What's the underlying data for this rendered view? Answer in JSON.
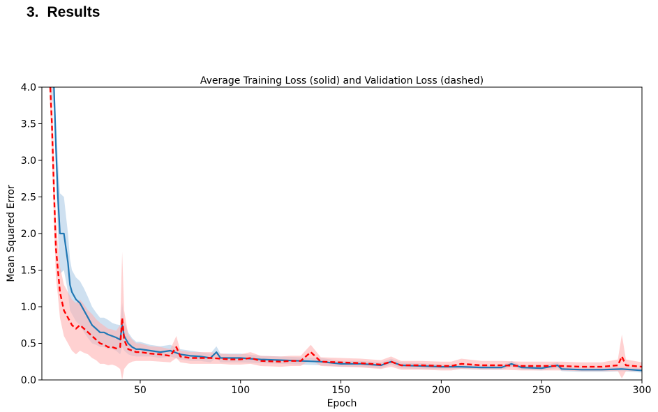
{
  "section": {
    "number": "3.",
    "title": "Results"
  },
  "colors": {
    "training": "#1f77b4",
    "validation": "#ff0000",
    "training_band": "#a6c6e4",
    "validation_band": "#ffb3b3"
  },
  "chart_data": {
    "type": "line",
    "title": "Average Training Loss (solid) and Validation Loss (dashed)",
    "xlabel": "Epoch",
    "ylabel": "Mean Squared Error",
    "xlim": [
      1,
      300
    ],
    "ylim": [
      0,
      4.0
    ],
    "x_ticks": [
      50,
      100,
      150,
      200,
      250,
      300
    ],
    "y_ticks": [
      0.0,
      0.5,
      1.0,
      1.5,
      2.0,
      2.5,
      3.0,
      3.5,
      4.0
    ],
    "grid": false,
    "legend": "none",
    "series": [
      {
        "line_style": "solid",
        "x": [
          5,
          7,
          8,
          9,
          10,
          12,
          14,
          15,
          16,
          18,
          20,
          22,
          24,
          26,
          28,
          30,
          32,
          34,
          36,
          38,
          40,
          41,
          42,
          44,
          46,
          48,
          50,
          55,
          60,
          65,
          70,
          75,
          80,
          85,
          88,
          90,
          95,
          100,
          110,
          120,
          130,
          140,
          150,
          160,
          170,
          175,
          180,
          190,
          200,
          210,
          220,
          230,
          235,
          240,
          250,
          258,
          260,
          270,
          280,
          290,
          300
        ],
        "y": [
          4.3,
          4.0,
          3.2,
          2.5,
          2.0,
          2.0,
          1.6,
          1.3,
          1.2,
          1.1,
          1.05,
          0.95,
          0.85,
          0.75,
          0.7,
          0.65,
          0.65,
          0.62,
          0.6,
          0.58,
          0.55,
          0.75,
          0.6,
          0.5,
          0.45,
          0.42,
          0.42,
          0.4,
          0.38,
          0.4,
          0.35,
          0.33,
          0.32,
          0.3,
          0.38,
          0.3,
          0.3,
          0.3,
          0.28,
          0.27,
          0.26,
          0.25,
          0.22,
          0.22,
          0.2,
          0.25,
          0.2,
          0.19,
          0.18,
          0.18,
          0.17,
          0.17,
          0.22,
          0.17,
          0.16,
          0.2,
          0.15,
          0.14,
          0.14,
          0.15,
          0.13
        ],
        "band_halfwidth": [
          0.3,
          0.3,
          0.35,
          0.5,
          0.55,
          0.5,
          0.4,
          0.35,
          0.3,
          0.3,
          0.3,
          0.3,
          0.28,
          0.25,
          0.22,
          0.2,
          0.2,
          0.2,
          0.18,
          0.18,
          0.2,
          0.3,
          0.2,
          0.15,
          0.12,
          0.1,
          0.1,
          0.08,
          0.08,
          0.08,
          0.07,
          0.07,
          0.06,
          0.06,
          0.08,
          0.06,
          0.06,
          0.06,
          0.05,
          0.05,
          0.05,
          0.05,
          0.04,
          0.04,
          0.04,
          0.04,
          0.04,
          0.04,
          0.03,
          0.03,
          0.03,
          0.03,
          0.04,
          0.03,
          0.03,
          0.04,
          0.03,
          0.03,
          0.03,
          0.03,
          0.03
        ]
      },
      {
        "line_style": "dashed",
        "x": [
          5,
          6,
          7,
          8,
          9,
          10,
          12,
          14,
          16,
          18,
          20,
          22,
          24,
          26,
          28,
          30,
          32,
          34,
          36,
          38,
          40,
          41,
          42,
          44,
          46,
          48,
          50,
          55,
          60,
          65,
          68,
          70,
          75,
          80,
          85,
          90,
          95,
          100,
          105,
          110,
          120,
          125,
          130,
          135,
          140,
          150,
          160,
          170,
          175,
          180,
          190,
          200,
          205,
          210,
          220,
          230,
          240,
          250,
          260,
          270,
          280,
          288,
          290,
          292,
          300
        ],
        "y": [
          4.1,
          3.5,
          2.6,
          1.8,
          1.5,
          1.2,
          0.95,
          0.85,
          0.75,
          0.7,
          0.75,
          0.7,
          0.65,
          0.6,
          0.55,
          0.5,
          0.48,
          0.45,
          0.45,
          0.43,
          0.45,
          0.85,
          0.55,
          0.42,
          0.4,
          0.38,
          0.38,
          0.36,
          0.35,
          0.33,
          0.45,
          0.32,
          0.3,
          0.3,
          0.3,
          0.29,
          0.28,
          0.28,
          0.3,
          0.26,
          0.25,
          0.26,
          0.26,
          0.38,
          0.25,
          0.24,
          0.23,
          0.21,
          0.25,
          0.2,
          0.2,
          0.19,
          0.19,
          0.22,
          0.2,
          0.2,
          0.19,
          0.19,
          0.19,
          0.18,
          0.18,
          0.2,
          0.32,
          0.2,
          0.18
        ],
        "band_halfwidth": [
          0.3,
          0.4,
          0.45,
          0.4,
          0.35,
          0.35,
          0.35,
          0.35,
          0.35,
          0.35,
          0.35,
          0.33,
          0.3,
          0.3,
          0.28,
          0.28,
          0.26,
          0.25,
          0.24,
          0.24,
          0.3,
          0.9,
          0.4,
          0.2,
          0.15,
          0.12,
          0.12,
          0.1,
          0.1,
          0.09,
          0.15,
          0.08,
          0.08,
          0.08,
          0.08,
          0.07,
          0.07,
          0.07,
          0.08,
          0.07,
          0.07,
          0.07,
          0.07,
          0.1,
          0.06,
          0.06,
          0.06,
          0.06,
          0.07,
          0.06,
          0.06,
          0.06,
          0.06,
          0.07,
          0.06,
          0.06,
          0.06,
          0.06,
          0.06,
          0.06,
          0.06,
          0.08,
          0.3,
          0.08,
          0.06
        ]
      }
    ]
  }
}
